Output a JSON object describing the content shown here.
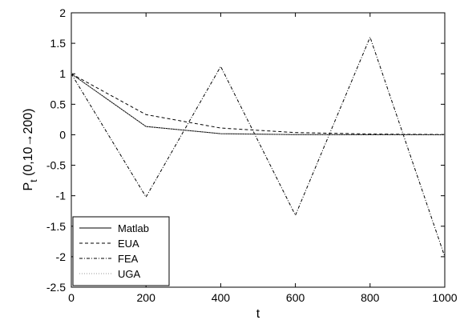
{
  "chart_data": {
    "type": "line",
    "title": "",
    "xlabel": "t",
    "ylabel_main": "P",
    "ylabel_sub": "t",
    "ylabel_tail": " (0,10→200)",
    "xlim": [
      0,
      1000
    ],
    "ylim": [
      -2.5,
      2
    ],
    "xticks": [
      0,
      200,
      400,
      600,
      800,
      1000
    ],
    "yticks": [
      -2.5,
      -2,
      -1.5,
      -1,
      -0.5,
      0,
      0.5,
      1,
      1.5,
      2
    ],
    "grid": false,
    "legend_position": "bottom-left",
    "series": [
      {
        "name": "Matlab",
        "style": "solid",
        "color": "#000000",
        "x": [
          0,
          200,
          400,
          600,
          800,
          1000
        ],
        "y": [
          1,
          0.135,
          0.018,
          0.002,
          0.0003,
          0
        ]
      },
      {
        "name": "EUA",
        "style": "dashed",
        "color": "#000000",
        "x": [
          0,
          200,
          400,
          600,
          800,
          1000
        ],
        "y": [
          1,
          0.33,
          0.11,
          0.036,
          0.012,
          0.004
        ]
      },
      {
        "name": "FEA",
        "style": "dashdot",
        "color": "#000000",
        "x": [
          0,
          200,
          400,
          600,
          800,
          1000
        ],
        "y": [
          1,
          -1.02,
          1.12,
          -1.32,
          1.6,
          -2.0
        ]
      },
      {
        "name": "UGA",
        "style": "dotted",
        "color": "#999999",
        "x": [
          0,
          200,
          400,
          600,
          800,
          1000
        ],
        "y": [
          1,
          0.135,
          0.018,
          0.002,
          0.0003,
          0
        ]
      }
    ]
  }
}
